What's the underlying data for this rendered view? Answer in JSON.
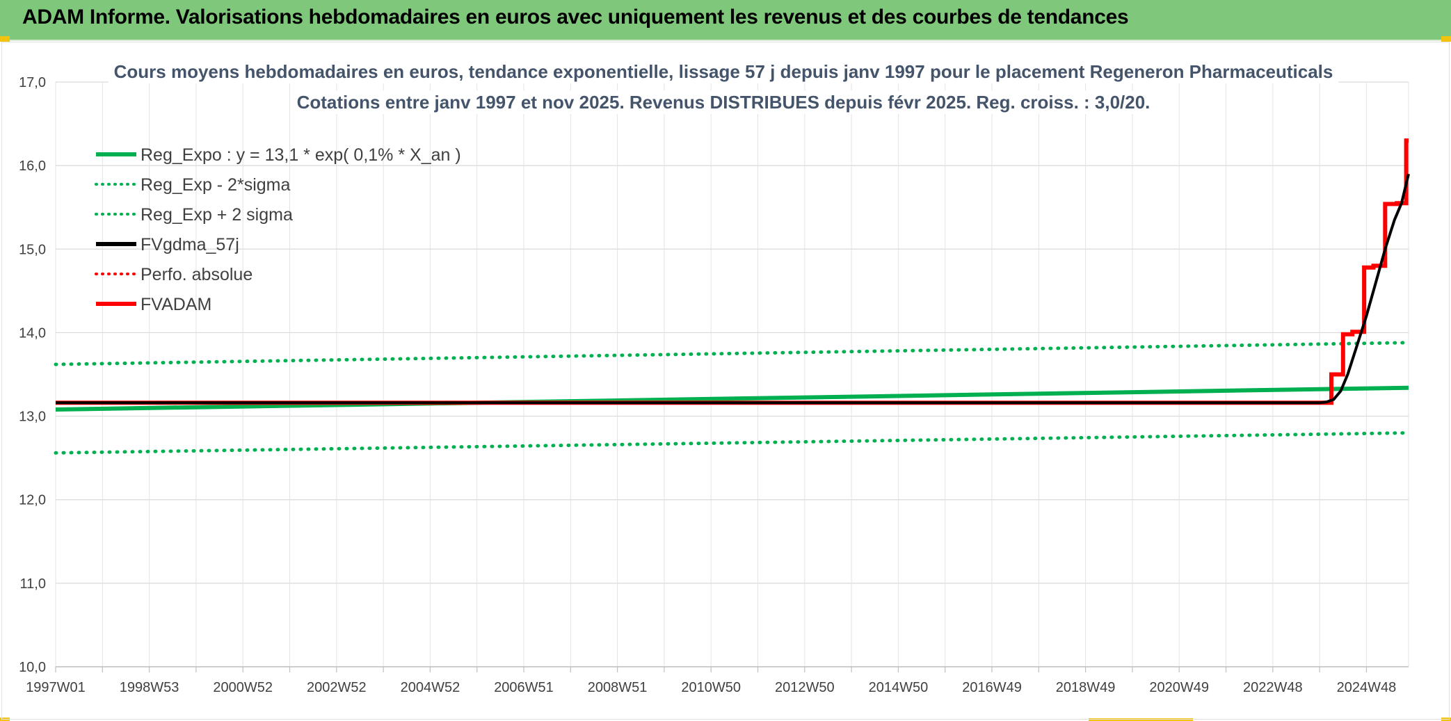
{
  "banner": {
    "title": "ADAM Informe. Valorisations hebdomadaires en euros avec uniquement les revenus et des courbes de tendances"
  },
  "colors": {
    "banner": "#7fc77a",
    "accent": "#f2c40f",
    "green": "#00b050",
    "red": "#ff0000",
    "black": "#000000",
    "title_text": "#44546a"
  },
  "chart_data": {
    "type": "line",
    "title": "Cours moyens hebdomadaires en euros, tendance exponentielle, lissage 57 j depuis janv 1997 pour le placement Regeneron Pharmaceuticals",
    "subtitle": "Cotations entre janv 1997 et nov 2025. Revenus DISTRIBUES depuis févr 2025. Reg. croiss. : 3,0/20.",
    "xlabel": "",
    "ylabel": "",
    "ylim": [
      10.0,
      17.0
    ],
    "xlim": [
      1997.0,
      2025.9
    ],
    "y_ticks": [
      "10,0",
      "11,0",
      "12,0",
      "13,0",
      "14,0",
      "15,0",
      "16,0",
      "17,0"
    ],
    "x_ticks": [
      {
        "label": "1997W01",
        "x": 1997.0
      },
      {
        "label": "1998W53",
        "x": 1999.0
      },
      {
        "label": "2000W52",
        "x": 2001.0
      },
      {
        "label": "2002W52",
        "x": 2003.0
      },
      {
        "label": "2004W52",
        "x": 2005.0
      },
      {
        "label": "2006W51",
        "x": 2007.0
      },
      {
        "label": "2008W51",
        "x": 2009.0
      },
      {
        "label": "2010W50",
        "x": 2011.0
      },
      {
        "label": "2012W50",
        "x": 2013.0
      },
      {
        "label": "2014W50",
        "x": 2015.0
      },
      {
        "label": "2016W49",
        "x": 2017.0
      },
      {
        "label": "2018W49",
        "x": 2019.0
      },
      {
        "label": "2020W49",
        "x": 2021.0
      },
      {
        "label": "2022W48",
        "x": 2023.0
      },
      {
        "label": "2024W48",
        "x": 2025.0
      }
    ],
    "grid": true,
    "legend_position": "top-left",
    "series": [
      {
        "name": "Reg_Expo : y = 13,1 * exp( 0,1% *  X_an )",
        "color": "#00b050",
        "style": "solid",
        "x": [
          1997.0,
          2025.9
        ],
        "y": [
          13.08,
          13.34
        ]
      },
      {
        "name": "Reg_Exp - 2*sigma",
        "color": "#00b050",
        "style": "dotted",
        "x": [
          1997.0,
          2025.9
        ],
        "y": [
          12.56,
          12.8
        ]
      },
      {
        "name": "Reg_Exp + 2 sigma",
        "color": "#00b050",
        "style": "dotted",
        "x": [
          1997.0,
          2025.9
        ],
        "y": [
          13.62,
          13.88
        ]
      },
      {
        "name": "FVgdma_57j",
        "color": "#000000",
        "style": "solid",
        "x": [
          1997.0,
          2024.0,
          2024.15,
          2024.3,
          2024.45,
          2024.6,
          2024.8,
          2025.0,
          2025.2,
          2025.4,
          2025.6,
          2025.75,
          2025.9
        ],
        "y": [
          13.16,
          13.16,
          13.17,
          13.2,
          13.3,
          13.5,
          13.85,
          14.2,
          14.6,
          15.0,
          15.35,
          15.55,
          15.9
        ]
      },
      {
        "name": "Perfo. absolue",
        "color": "#ff0000",
        "style": "dotted",
        "x": [],
        "y": []
      },
      {
        "name": "FVADAM",
        "color": "#ff0000",
        "style": "solid",
        "x": [
          1997.0,
          2024.25,
          2024.25,
          2024.5,
          2024.5,
          2024.7,
          2024.7,
          2024.95,
          2024.95,
          2025.15,
          2025.15,
          2025.4,
          2025.4,
          2025.65,
          2025.65,
          2025.85,
          2025.85,
          2025.9
        ],
        "y": [
          13.16,
          13.16,
          13.5,
          13.5,
          13.98,
          13.98,
          14.01,
          14.01,
          14.78,
          14.78,
          14.8,
          14.8,
          15.54,
          15.54,
          15.55,
          15.55,
          16.3,
          16.3
        ]
      }
    ]
  }
}
